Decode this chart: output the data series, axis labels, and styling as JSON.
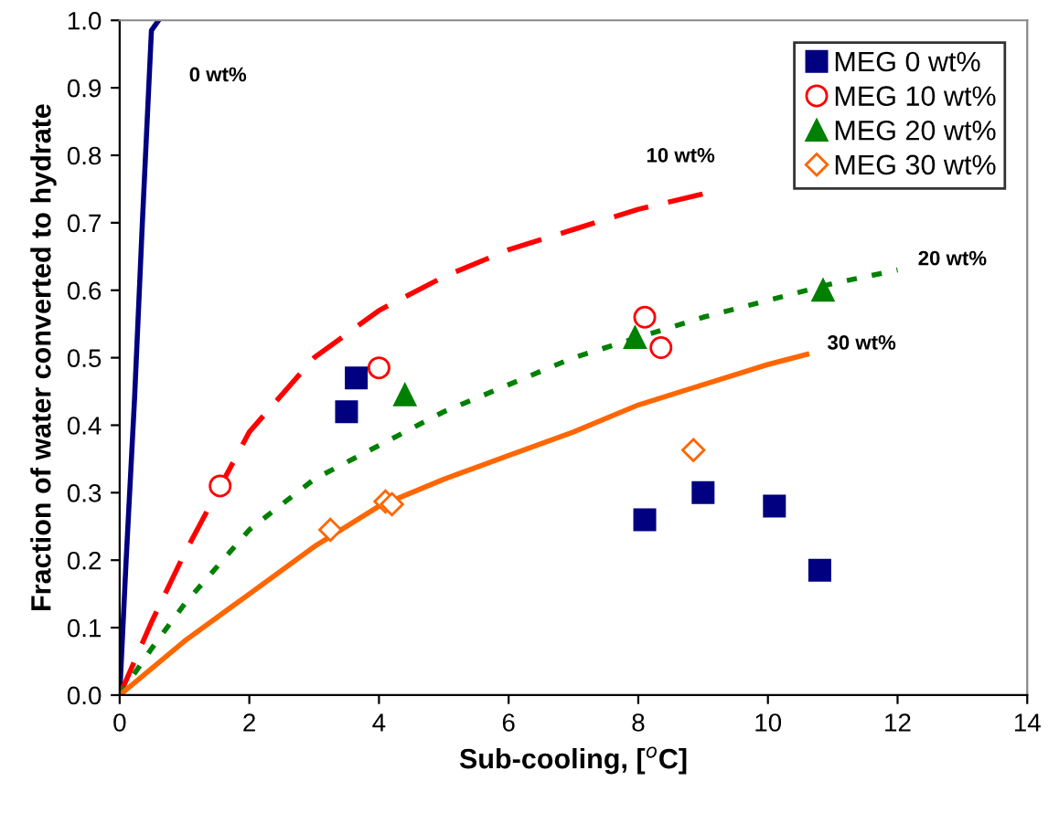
{
  "chart_data": {
    "type": "scatter",
    "xlabel": "Sub-cooling, [$^{o}$C]",
    "ylabel": "Fraction of water converted to hydrate",
    "xlim": [
      0,
      14
    ],
    "ylim": [
      0,
      1.0
    ],
    "xticks": [
      0,
      2,
      4,
      6,
      8,
      10,
      12,
      14
    ],
    "yticks": [
      {
        "value": 0,
        "label": "0.0"
      },
      0.1,
      0.2,
      0.3,
      0.4,
      0.5,
      0.6,
      0.7,
      0.8,
      0.9,
      {
        "value": 1,
        "label": "1.0"
      }
    ],
    "grid": false,
    "legend": "top right",
    "series": [
      {
        "name": "MEG 0 wt%",
        "marker": "square",
        "color": "#000080",
        "x": [
          3.5,
          3.65,
          8.1,
          9.0,
          10.1,
          10.8
        ],
        "values": [
          0.42,
          0.47,
          0.26,
          0.3,
          0.28,
          0.185
        ]
      },
      {
        "name": "MEG 10 wt%",
        "marker": "circle",
        "color": "#ff0000",
        "x": [
          1.55,
          4.0,
          8.1,
          8.35
        ],
        "values": [
          0.31,
          0.485,
          0.56,
          0.515
        ]
      },
      {
        "name": "MEG 20 wt%",
        "marker": "triangle",
        "color": "#008000",
        "x": [
          4.4,
          7.95,
          10.85
        ],
        "values": [
          0.445,
          0.53,
          0.6
        ]
      },
      {
        "name": "MEG 30 wt%",
        "marker": "diamond",
        "color": "#ff6600",
        "x": [
          3.25,
          4.1,
          4.2,
          8.85
        ],
        "values": [
          0.245,
          0.287,
          0.283,
          0.363
        ]
      },
      {
        "name": "0 wt%",
        "type": "line",
        "line_style": "solid",
        "color": "#000080",
        "x": [
          0,
          0.1,
          0.23,
          0.35,
          0.49,
          0.6
        ],
        "values": [
          0,
          0.2,
          0.44,
          0.7,
          0.985,
          1.0
        ]
      },
      {
        "name": "10 wt%",
        "type": "line",
        "line_style": "dashed",
        "color": "#ff0000",
        "x": [
          0,
          0.5,
          1,
          1.5,
          2,
          3,
          4,
          5,
          6,
          7,
          8,
          9.1
        ],
        "values": [
          0,
          0.11,
          0.21,
          0.3,
          0.39,
          0.5,
          0.57,
          0.62,
          0.66,
          0.69,
          0.72,
          0.745
        ]
      },
      {
        "name": "20 wt%",
        "type": "line",
        "line_style": "dotted",
        "color": "#008000",
        "x": [
          0,
          0.5,
          1,
          2,
          3,
          4,
          5,
          6,
          7,
          8,
          9,
          10,
          11,
          12
        ],
        "values": [
          0,
          0.07,
          0.135,
          0.245,
          0.32,
          0.37,
          0.42,
          0.46,
          0.5,
          0.53,
          0.56,
          0.585,
          0.61,
          0.63
        ]
      },
      {
        "name": "30 wt%",
        "type": "line",
        "line_style": "solid",
        "color": "#ff6600",
        "x": [
          0,
          1,
          2,
          3,
          4,
          5,
          6,
          7,
          8,
          9,
          10,
          10.6
        ],
        "values": [
          0,
          0.08,
          0.15,
          0.22,
          0.28,
          0.32,
          0.355,
          0.39,
          0.43,
          0.46,
          0.49,
          0.505
        ]
      }
    ]
  }
}
